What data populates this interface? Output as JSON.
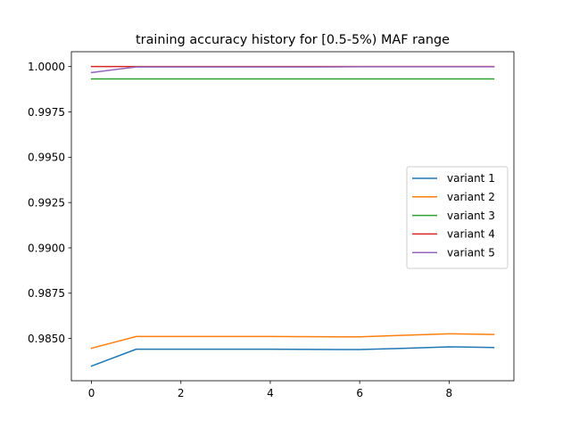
{
  "chart_data": {
    "type": "line",
    "title": "training accuracy history for [0.5-5%) MAF range",
    "xlabel": "",
    "ylabel": "",
    "x": [
      0,
      1,
      2,
      3,
      4,
      5,
      6,
      7,
      8,
      9
    ],
    "xlim": [
      -0.45,
      9.45
    ],
    "ylim": [
      0.98267,
      1.00082
    ],
    "x_ticks": [
      0,
      2,
      4,
      6,
      8
    ],
    "x_tick_labels": [
      "0",
      "2",
      "4",
      "6",
      "8"
    ],
    "y_ticks": [
      0.985,
      0.9875,
      0.99,
      0.9925,
      0.995,
      0.9975,
      1.0
    ],
    "y_tick_labels": [
      "0.9850",
      "0.9875",
      "0.9900",
      "0.9925",
      "0.9950",
      "0.9975",
      "1.0000"
    ],
    "grid": false,
    "legend": "center-right",
    "series": [
      {
        "name": "variant 1",
        "color": "#1f77b4",
        "values": [
          0.98348,
          0.98441,
          0.98441,
          0.98441,
          0.98441,
          0.9844,
          0.98439,
          0.98446,
          0.98454,
          0.9845
        ]
      },
      {
        "name": "variant 2",
        "color": "#ff7f0e",
        "values": [
          0.98446,
          0.98511,
          0.98511,
          0.98511,
          0.98511,
          0.9851,
          0.98509,
          0.98518,
          0.98526,
          0.98522
        ]
      },
      {
        "name": "variant 3",
        "color": "#2ca02c",
        "values": [
          0.99932,
          0.99932,
          0.99932,
          0.99932,
          0.99932,
          0.99932,
          0.99932,
          0.99932,
          0.99932,
          0.99932
        ]
      },
      {
        "name": "variant 4",
        "color": "#d62728",
        "values": [
          1.0,
          1.0,
          1.0,
          1.0,
          1.0,
          1.0,
          1.0,
          1.0,
          1.0,
          1.0
        ]
      },
      {
        "name": "variant 5",
        "color": "#9467bd",
        "values": [
          0.99967,
          0.99998,
          0.99998,
          0.99998,
          0.99998,
          0.99998,
          0.99999,
          0.99999,
          0.99999,
          0.99999
        ]
      }
    ]
  }
}
